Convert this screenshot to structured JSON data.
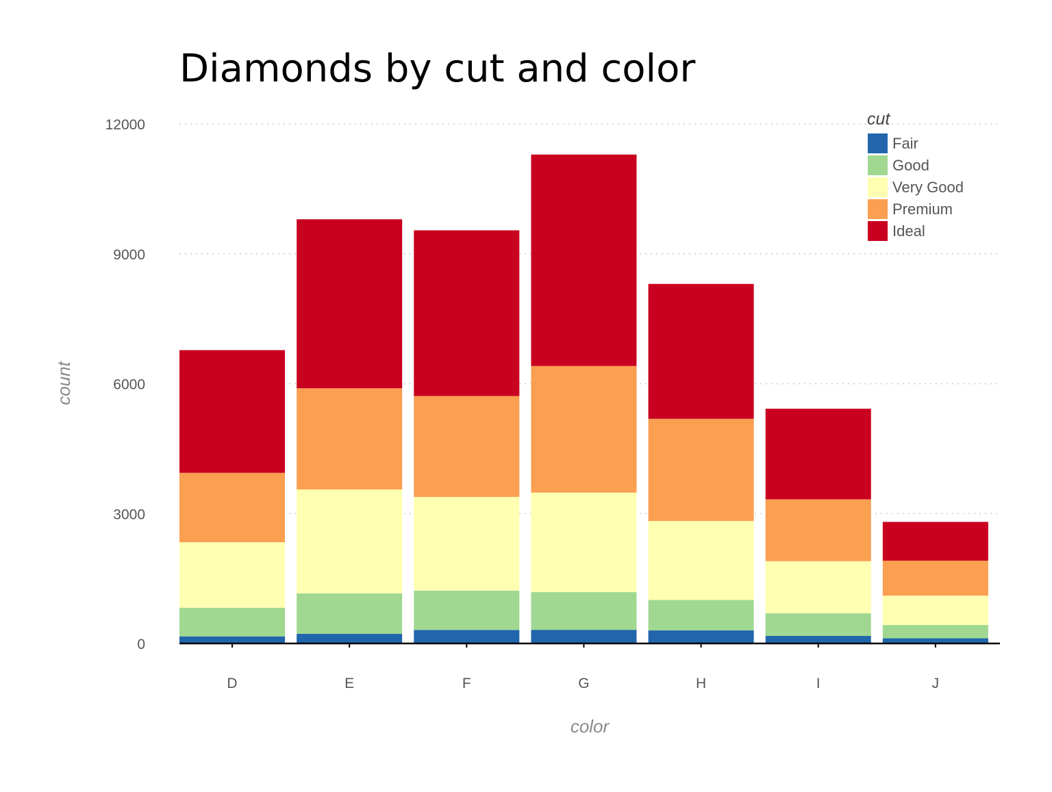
{
  "chart_data": {
    "type": "bar",
    "stacked": true,
    "title": "Diamonds by cut and color",
    "xlabel": "color",
    "ylabel": "count",
    "categories": [
      "D",
      "E",
      "F",
      "G",
      "H",
      "I",
      "J"
    ],
    "yticks": [
      "0",
      "3000",
      "6000",
      "9000",
      "12000"
    ],
    "ylim": [
      0,
      12000
    ],
    "grid": "horizontal dotted",
    "legend": {
      "title": "cut",
      "placement": "top-right"
    },
    "series": [
      {
        "name": "Fair",
        "color": "#2166ac",
        "values": [
          163,
          224,
          312,
          314,
          303,
          175,
          119
        ]
      },
      {
        "name": "Good",
        "color": "#a0d891",
        "values": [
          662,
          933,
          909,
          871,
          702,
          522,
          307
        ]
      },
      {
        "name": "Very Good",
        "color": "#ffffb1",
        "values": [
          1513,
          2400,
          2164,
          2299,
          1824,
          1204,
          678
        ]
      },
      {
        "name": "Premium",
        "color": "#fb9f51",
        "values": [
          1603,
          2337,
          2331,
          2924,
          2360,
          1428,
          808
        ]
      },
      {
        "name": "Ideal",
        "color": "#ca0020",
        "values": [
          2834,
          3903,
          3826,
          4884,
          3115,
          2093,
          896
        ]
      }
    ]
  }
}
